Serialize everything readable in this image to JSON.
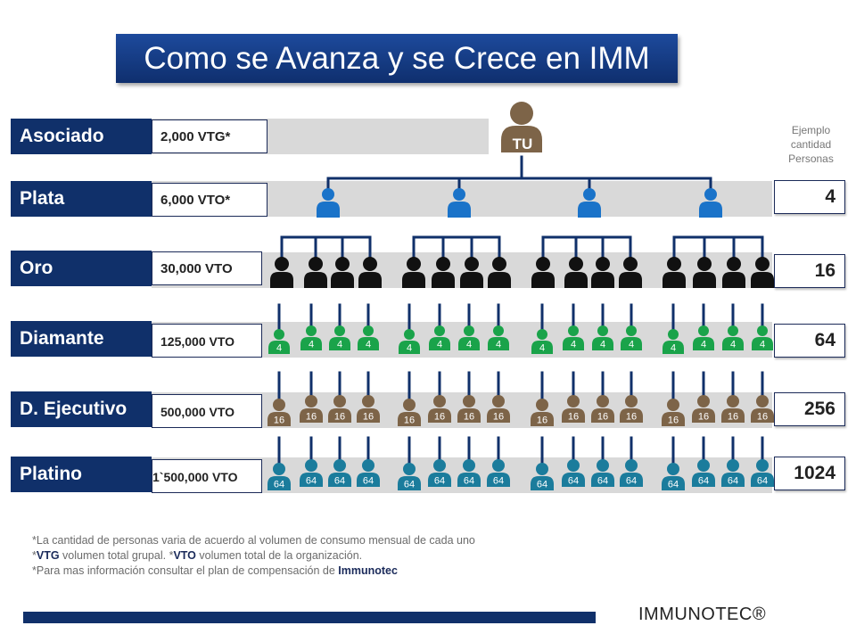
{
  "title": "Como se Avanza y se Crece en IMM",
  "tu_label": "TU",
  "ejemplo_lines": [
    "Ejemplo",
    "cantidad",
    "Personas"
  ],
  "levels": [
    {
      "name": "Asociado",
      "volume": "2,000  VTG*",
      "count": ""
    },
    {
      "name": "Plata",
      "volume": "6,000  VTO*",
      "count": "4"
    },
    {
      "name": "Oro",
      "volume": "30,000 VTO",
      "count": "16"
    },
    {
      "name": "Diamante",
      "volume": "125,000 VTO",
      "count": "64"
    },
    {
      "name": "D. Ejecutivo",
      "volume": "500,000 VTO",
      "count": "256"
    },
    {
      "name": "Platino",
      "volume": "1`500,000 VTO",
      "count": "1024"
    }
  ],
  "icon_labels": {
    "diamante": "4",
    "ejecutivo": "16",
    "platino": "64"
  },
  "colors": {
    "navy": "#10306a",
    "brown": "#7d6448",
    "blue": "#1a73c9",
    "black": "#111111",
    "green": "#1aa34a",
    "teal": "#1b7c9c",
    "band": "#d9d9d9"
  },
  "notes": {
    "line1": "*La cantidad de personas varia de acuerdo al volumen de consumo mensual de cada uno",
    "line2_pre": "*",
    "line2_vtg": "VTG",
    "line2_mid": " volumen total grupal. *",
    "line2_vto": "VTO",
    "line2_post": " volumen total de la organización.",
    "line3_pre": "*Para mas información consultar el plan de compensación de ",
    "line3_brand": "Immunotec"
  },
  "brand": "IMMUNOTEC®"
}
